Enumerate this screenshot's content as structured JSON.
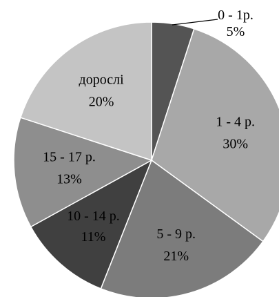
{
  "chart_data": {
    "type": "pie",
    "title": "",
    "start_angle_deg": 0,
    "direction": "clockwise",
    "slices": [
      {
        "label": "0 - 1р.",
        "value": 5,
        "value_label": "5%",
        "color": "#545454"
      },
      {
        "label": "1 - 4 р.",
        "value": 30,
        "value_label": "30%",
        "color": "#a8a8a8"
      },
      {
        "label": "5 - 9 р.",
        "value": 21,
        "value_label": "21%",
        "color": "#7c7c7c"
      },
      {
        "label": "10 - 14 р.",
        "value": 11,
        "value_label": "11%",
        "color": "#404040"
      },
      {
        "label": "15 - 17 р.",
        "value": 13,
        "value_label": "13%",
        "color": "#8e8e8e"
      },
      {
        "label": "дорослі",
        "value": 20,
        "value_label": "20%",
        "color": "#c4c4c4"
      }
    ],
    "slice_border_color": "#ffffff",
    "legend": "none"
  }
}
